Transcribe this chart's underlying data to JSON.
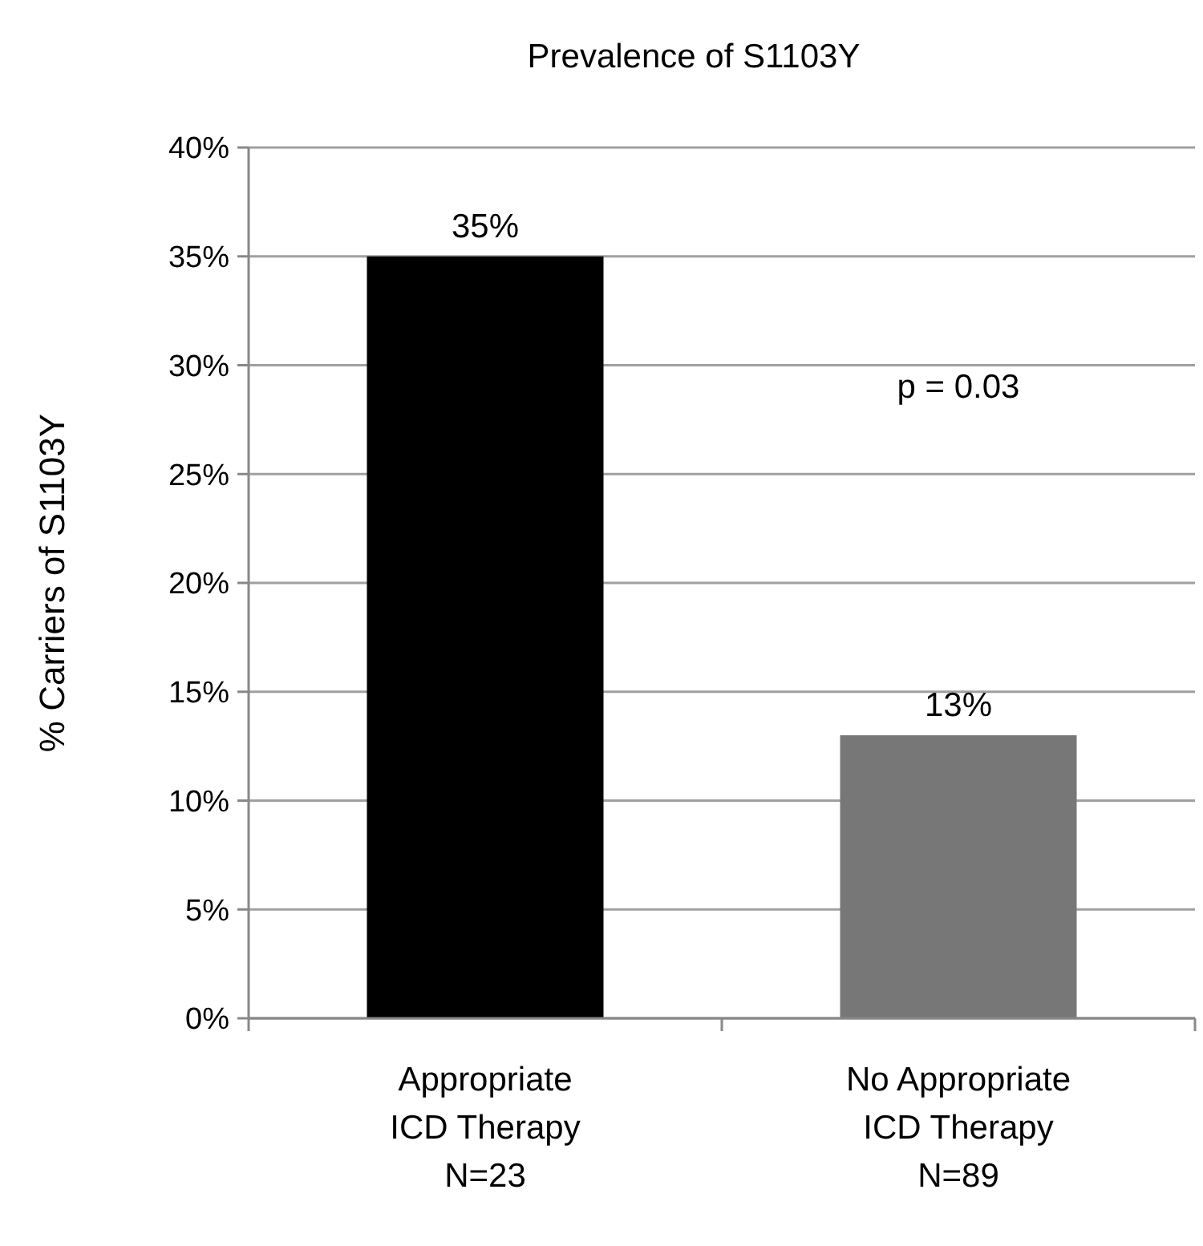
{
  "chart_data": {
    "type": "bar",
    "title": "Prevalence of S1103Y",
    "ylabel": "% Carriers of S1103Y",
    "categories": [
      "Appropriate\nICD Therapy\nN=23",
      "No Appropriate\nICD Therapy\nN=89"
    ],
    "values": [
      35,
      13
    ],
    "colors": [
      "#000000",
      "#777777"
    ],
    "value_labels": [
      "35%",
      "13%"
    ],
    "ylim": [
      0,
      40
    ],
    "yticks": [
      {
        "value": 0,
        "label": "0%"
      },
      {
        "value": 5,
        "label": "5%"
      },
      {
        "value": 10,
        "label": "10%"
      },
      {
        "value": 15,
        "label": "15%"
      },
      {
        "value": 20,
        "label": "20%"
      },
      {
        "value": 25,
        "label": "25%"
      },
      {
        "value": 30,
        "label": "30%"
      },
      {
        "value": 35,
        "label": "35%"
      },
      {
        "value": 40,
        "label": "40%"
      }
    ],
    "grid": "y",
    "annotations": [
      "p = 0.03"
    ]
  }
}
